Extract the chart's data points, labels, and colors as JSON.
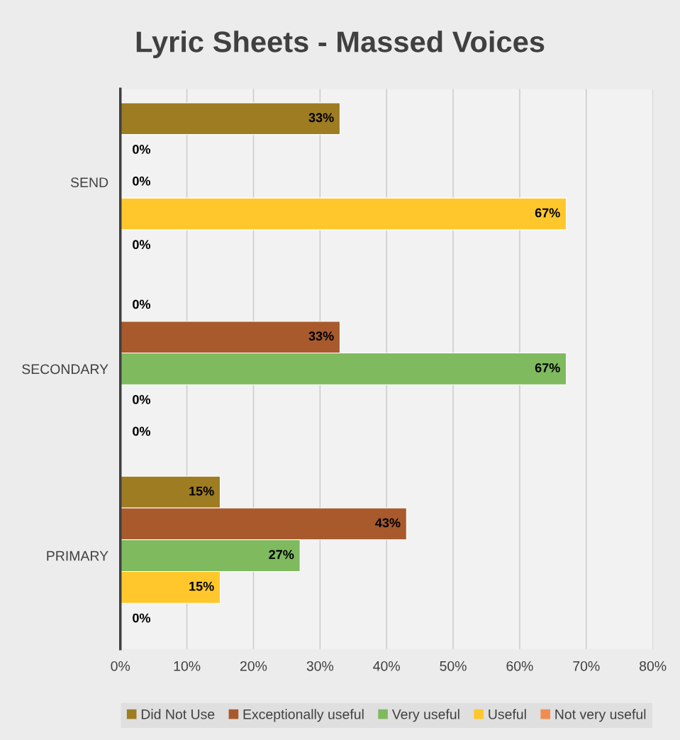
{
  "chart_data": {
    "type": "bar",
    "orientation": "horizontal",
    "title": "Lyric Sheets - Massed Voices",
    "categories": [
      "SEND",
      "SECONDARY",
      "PRIMARY"
    ],
    "series": [
      {
        "name": "Did Not Use",
        "color": "#9e7c22",
        "values": [
          33,
          0,
          15
        ],
        "value_labels": [
          "33%",
          "0%",
          "15%"
        ]
      },
      {
        "name": "Exceptionally useful",
        "color": "#a85a2d",
        "values": [
          0,
          33,
          43
        ],
        "value_labels": [
          "0%",
          "33%",
          "43%"
        ]
      },
      {
        "name": "Very useful",
        "color": "#7fba5e",
        "values": [
          0,
          67,
          27
        ],
        "value_labels": [
          "0%",
          "67%",
          "27%"
        ]
      },
      {
        "name": "Useful",
        "color": "#ffc72c",
        "values": [
          67,
          0,
          15
        ],
        "value_labels": [
          "67%",
          "0%",
          "15%"
        ]
      },
      {
        "name": "Not very useful",
        "color": "#f08c4f",
        "values": [
          0,
          0,
          0
        ],
        "value_labels": [
          "0%",
          "0%",
          "0%"
        ]
      }
    ],
    "xlim": [
      0,
      80
    ],
    "xticks": [
      {
        "value": 0,
        "label": "0%"
      },
      {
        "value": 10,
        "label": "10%"
      },
      {
        "value": 20,
        "label": "20%"
      },
      {
        "value": 30,
        "label": "30%"
      },
      {
        "value": 40,
        "label": "40%"
      },
      {
        "value": 50,
        "label": "50%"
      },
      {
        "value": 60,
        "label": "60%"
      },
      {
        "value": 70,
        "label": "70%"
      },
      {
        "value": 80,
        "label": "80%"
      }
    ],
    "grid": "x",
    "legend": "bottom"
  }
}
